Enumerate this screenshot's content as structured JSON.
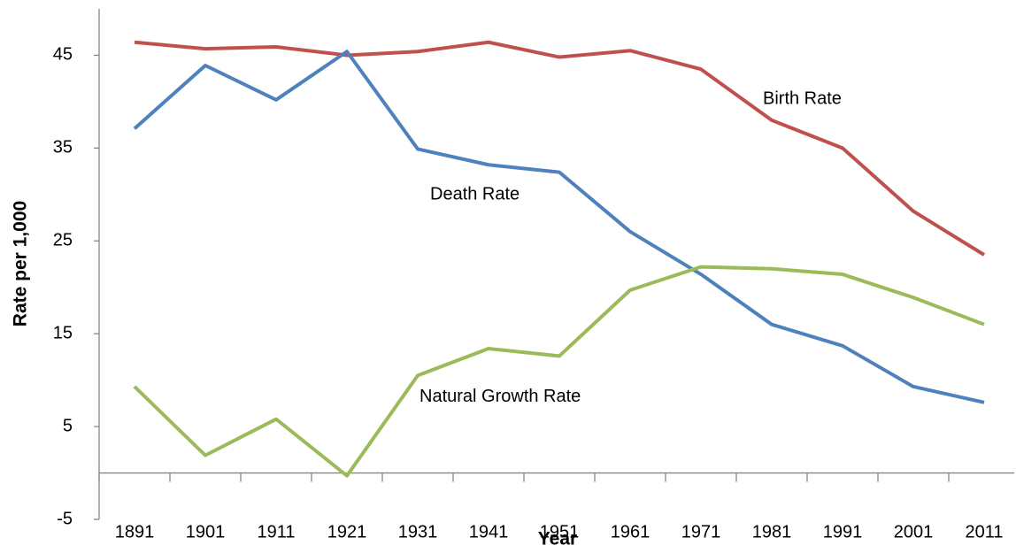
{
  "chart_data": {
    "type": "line",
    "x_label": "Year",
    "y_label": "Rate per  1,000",
    "categories": [
      "1891",
      "1901",
      "1911",
      "1921",
      "1931",
      "1941",
      "1951",
      "1961",
      "1971",
      "1981",
      "1991",
      "2001",
      "2011"
    ],
    "series": [
      {
        "name": "Birth Rate",
        "color": "#c0504d",
        "values": [
          46.4,
          45.7,
          45.9,
          45.0,
          45.4,
          46.4,
          44.8,
          45.5,
          43.5,
          38.0,
          35.0,
          28.2,
          23.5
        ]
      },
      {
        "name": "Death Rate",
        "color": "#4f81bd",
        "values": [
          37.1,
          43.9,
          40.2,
          45.4,
          34.9,
          33.2,
          32.4,
          26.0,
          21.4,
          16.0,
          13.7,
          9.3,
          7.6
        ]
      },
      {
        "name": "Natural Growth Rate",
        "color": "#9bbb59",
        "values": [
          9.3,
          1.9,
          5.8,
          -0.3,
          10.5,
          13.4,
          12.6,
          19.7,
          22.2,
          22.0,
          21.4,
          18.9,
          16.0
        ]
      }
    ],
    "ylim": [
      -5,
      50
    ],
    "yticks": [
      45,
      35,
      25,
      15,
      5,
      -5
    ],
    "grid": false
  }
}
